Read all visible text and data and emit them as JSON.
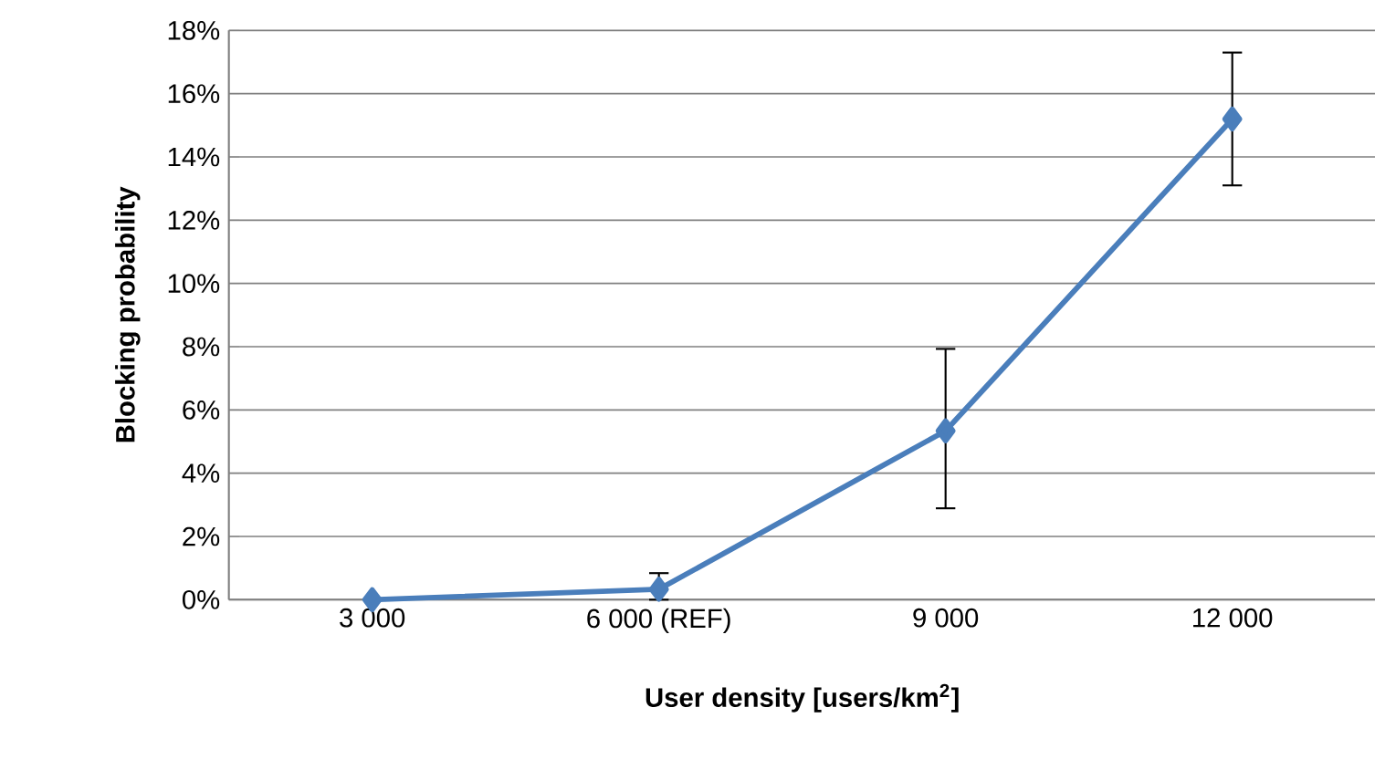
{
  "chart_data": {
    "type": "line",
    "xlabel": "User density [users/km$^{2}$]",
    "ylabel": "Blocking probability",
    "categories": [
      "3 000",
      "6 000 (REF)",
      "9 000",
      "12 000"
    ],
    "series": [
      {
        "color": "#4a7ebb",
        "values": [
          0,
          0.33,
          5.34,
          15.2
        ],
        "errors": [
          null,
          [
            0,
            0.84
          ],
          [
            2.89,
            7.93
          ],
          [
            13.1,
            17.3
          ]
        ]
      }
    ],
    "ylim": [
      0,
      18
    ],
    "yticks": [
      {
        "value": 0,
        "label": "0%"
      },
      {
        "value": 2,
        "label": "2%"
      },
      {
        "value": 4,
        "label": "4%"
      },
      {
        "value": 6,
        "label": "6%"
      },
      {
        "value": 8,
        "label": "8%"
      },
      {
        "value": 10,
        "label": "10%"
      },
      {
        "value": 12,
        "label": "12%"
      },
      {
        "value": 14,
        "label": "14%"
      },
      {
        "value": 16,
        "label": "16%"
      },
      {
        "value": 18,
        "label": "18%"
      }
    ],
    "grid": "y",
    "marker": "diamond",
    "line_style": "solid"
  }
}
